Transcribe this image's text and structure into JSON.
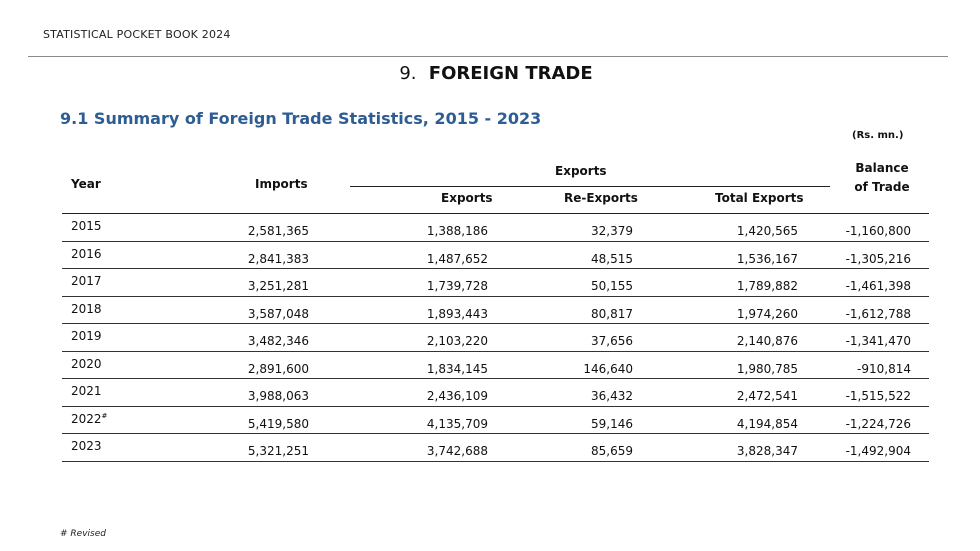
{
  "header": {
    "book_title": "STATISTICAL POCKET BOOK 2024"
  },
  "chapter": {
    "number": "9.",
    "title": "FOREIGN TRADE"
  },
  "section": {
    "title": "9.1 Summary of Foreign Trade Statistics, 2015 - 2023"
  },
  "table": {
    "unit": "(Rs. mn.)",
    "headers": {
      "year": "Year",
      "imports": "Imports",
      "exports_group": "Exports",
      "exports": "Exports",
      "reexports": "Re-Exports",
      "total_exports": "Total Exports",
      "balance_line1": "Balance",
      "balance_line2": "of Trade"
    },
    "rows": [
      {
        "year": "2015",
        "mark": "",
        "imports": "2,581,365",
        "exports": "1,388,186",
        "reexports": "32,379",
        "total": "1,420,565",
        "balance": "-1,160,800"
      },
      {
        "year": "2016",
        "mark": "",
        "imports": "2,841,383",
        "exports": "1,487,652",
        "reexports": "48,515",
        "total": "1,536,167",
        "balance": "-1,305,216"
      },
      {
        "year": "2017",
        "mark": "",
        "imports": "3,251,281",
        "exports": "1,739,728",
        "reexports": "50,155",
        "total": "1,789,882",
        "balance": "-1,461,398"
      },
      {
        "year": "2018",
        "mark": "",
        "imports": "3,587,048",
        "exports": "1,893,443",
        "reexports": "80,817",
        "total": "1,974,260",
        "balance": "-1,612,788"
      },
      {
        "year": "2019",
        "mark": "",
        "imports": "3,482,346",
        "exports": "2,103,220",
        "reexports": "37,656",
        "total": "2,140,876",
        "balance": "-1,341,470"
      },
      {
        "year": "2020",
        "mark": "",
        "imports": "2,891,600",
        "exports": "1,834,145",
        "reexports": "146,640",
        "total": "1,980,785",
        "balance": "-910,814"
      },
      {
        "year": "2021",
        "mark": "",
        "imports": "3,988,063",
        "exports": "2,436,109",
        "reexports": "36,432",
        "total": "2,472,541",
        "balance": "-1,515,522"
      },
      {
        "year": "2022",
        "mark": "#",
        "imports": "5,419,580",
        "exports": "4,135,709",
        "reexports": "59,146",
        "total": "4,194,854",
        "balance": "-1,224,726"
      },
      {
        "year": "2023",
        "mark": "",
        "imports": "5,321,251",
        "exports": "3,742,688",
        "reexports": "85,659",
        "total": "3,828,347",
        "balance": "-1,492,904"
      }
    ]
  },
  "footnote": "# Revised",
  "colors": {
    "section_title": "#2e5d93"
  }
}
